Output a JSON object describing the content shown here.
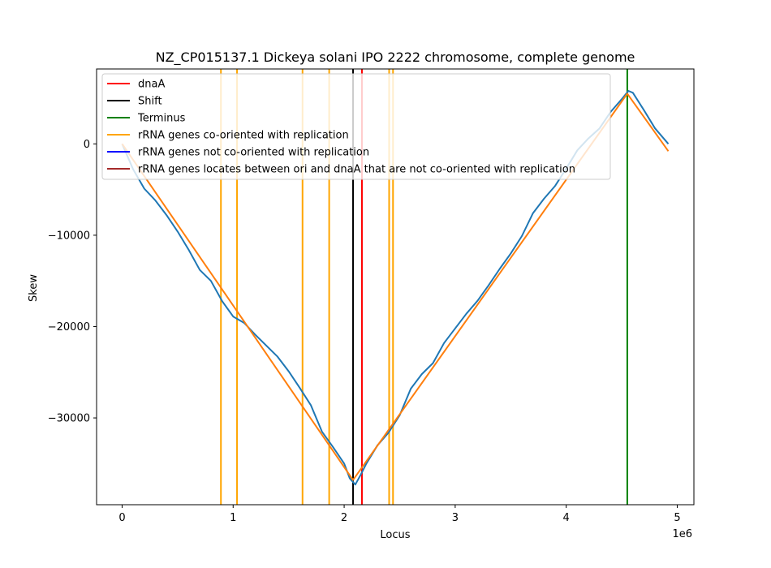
{
  "chart_data": {
    "type": "line",
    "title": "NZ_CP015137.1 Dickeya solani IPO 2222 chromosome, complete genome",
    "xlabel": "Locus",
    "ylabel": "Skew",
    "x_offset_label": "1e6",
    "xlim": [
      -230000,
      5150000
    ],
    "ylim": [
      -39500,
      8200
    ],
    "x_ticks": [
      0,
      1000000,
      2000000,
      3000000,
      4000000,
      5000000
    ],
    "x_tick_labels": [
      "0",
      "1",
      "2",
      "3",
      "4",
      "5"
    ],
    "y_ticks": [
      0,
      -10000,
      -20000,
      -30000
    ],
    "y_tick_labels": [
      "0",
      "−10000",
      "−20000",
      "−30000"
    ],
    "grid": false,
    "legend_position": "top-left",
    "series": [
      {
        "name": "",
        "color": "#1f77b4",
        "points": [
          [
            0,
            0
          ],
          [
            100000,
            -2800
          ],
          [
            200000,
            -4900
          ],
          [
            300000,
            -6200
          ],
          [
            400000,
            -7800
          ],
          [
            500000,
            -9600
          ],
          [
            600000,
            -11600
          ],
          [
            700000,
            -13800
          ],
          [
            800000,
            -15000
          ],
          [
            900000,
            -17200
          ],
          [
            1000000,
            -18900
          ],
          [
            1100000,
            -19600
          ],
          [
            1200000,
            -20900
          ],
          [
            1300000,
            -22100
          ],
          [
            1400000,
            -23300
          ],
          [
            1500000,
            -24900
          ],
          [
            1600000,
            -26700
          ],
          [
            1700000,
            -28600
          ],
          [
            1800000,
            -31500
          ],
          [
            1900000,
            -33200
          ],
          [
            2000000,
            -35000
          ],
          [
            2050000,
            -36600
          ],
          [
            2100000,
            -37300
          ],
          [
            2150000,
            -36200
          ],
          [
            2200000,
            -35000
          ],
          [
            2300000,
            -33000
          ],
          [
            2400000,
            -31600
          ],
          [
            2500000,
            -29700
          ],
          [
            2600000,
            -26800
          ],
          [
            2700000,
            -25200
          ],
          [
            2800000,
            -24000
          ],
          [
            2900000,
            -21800
          ],
          [
            3000000,
            -20200
          ],
          [
            3100000,
            -18600
          ],
          [
            3200000,
            -17200
          ],
          [
            3300000,
            -15500
          ],
          [
            3400000,
            -13700
          ],
          [
            3500000,
            -12000
          ],
          [
            3600000,
            -10100
          ],
          [
            3700000,
            -7600
          ],
          [
            3800000,
            -6000
          ],
          [
            3900000,
            -4600
          ],
          [
            4000000,
            -2700
          ],
          [
            4100000,
            -700
          ],
          [
            4200000,
            600
          ],
          [
            4300000,
            1700
          ],
          [
            4400000,
            3500
          ],
          [
            4500000,
            4900
          ],
          [
            4560000,
            5800
          ],
          [
            4600000,
            5600
          ],
          [
            4700000,
            3700
          ],
          [
            4800000,
            1700
          ],
          [
            4920000,
            0
          ]
        ]
      },
      {
        "name": "",
        "color": "#ff7f0e",
        "points": [
          [
            0,
            0
          ],
          [
            2080000,
            -36800
          ],
          [
            4550000,
            5500
          ],
          [
            4920000,
            -800
          ]
        ]
      }
    ],
    "vlines": [
      {
        "x": 2160000,
        "color": "#ff0000"
      },
      {
        "x": 2080000,
        "color": "#000000"
      },
      {
        "x": 4550000,
        "color": "#008000"
      },
      {
        "x": 890000,
        "color": "#ffa500"
      },
      {
        "x": 1035000,
        "color": "#ffa500"
      },
      {
        "x": 1625000,
        "color": "#ffa500"
      },
      {
        "x": 1865000,
        "color": "#ffa500"
      },
      {
        "x": 2405000,
        "color": "#ffa500"
      },
      {
        "x": 2440000,
        "color": "#ffa500"
      }
    ],
    "legend": [
      {
        "label": "dnaA",
        "color": "#ff0000"
      },
      {
        "label": "Shift",
        "color": "#000000"
      },
      {
        "label": "Terminus",
        "color": "#008000"
      },
      {
        "label": "rRNA genes co-oriented with replication",
        "color": "#ffa500"
      },
      {
        "label": "rRNA genes not co-oriented with replication",
        "color": "#0000ff"
      },
      {
        "label": "rRNA genes locates between ori and dnaA that are not co-oriented with replication",
        "color": "#a52a2a"
      }
    ]
  }
}
